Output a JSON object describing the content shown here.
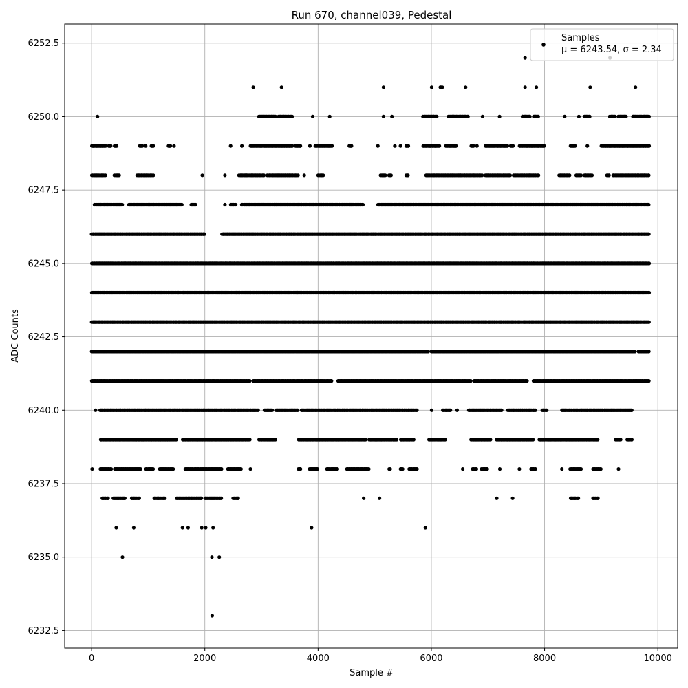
{
  "chart_data": {
    "type": "scatter",
    "title": "Run 670, channel039, Pedestal",
    "xlabel": "Sample #",
    "ylabel": "ADC Counts",
    "xlim": [
      -475,
      10350
    ],
    "ylim": [
      6231.9,
      6253.15
    ],
    "xticks": [
      0,
      2000,
      4000,
      6000,
      8000,
      10000
    ],
    "xtick_labels": [
      "0",
      "2000",
      "4000",
      "6000",
      "8000",
      "10000"
    ],
    "yticks": [
      6232.5,
      6235.0,
      6237.5,
      6240.0,
      6242.5,
      6245.0,
      6247.5,
      6250.0,
      6252.5
    ],
    "ytick_labels": [
      "6232.5",
      "6235.0",
      "6237.5",
      "6240.0",
      "6242.5",
      "6245.0",
      "6247.5",
      "6250.0",
      "6252.5"
    ],
    "grid": true,
    "legend": {
      "placement": "top-right",
      "series_name": "Samples",
      "stats_text": "μ = 6243.54, σ = 2.34"
    },
    "marker_color": "#000000",
    "n_samples": 9850,
    "level_ranges": [
      {
        "y": 6233,
        "ranges": [
          [
            2125,
            2135
          ]
        ]
      },
      {
        "y": 6235,
        "ranges": [
          [
            540,
            550
          ],
          [
            2120,
            2130
          ],
          [
            2250,
            2260
          ]
        ]
      },
      {
        "y": 6236,
        "ranges": [
          [
            430,
            440
          ],
          [
            740,
            750
          ],
          [
            1600,
            1610
          ],
          [
            1700,
            1710
          ],
          [
            1940,
            1950
          ],
          [
            2010,
            2020
          ],
          [
            2140,
            2150
          ],
          [
            3880,
            3890
          ],
          [
            5890,
            5900
          ]
        ]
      },
      {
        "y": 6237,
        "ranges": [
          [
            180,
            300
          ],
          [
            380,
            600
          ],
          [
            700,
            850
          ],
          [
            1100,
            1300
          ],
          [
            1500,
            1650
          ],
          [
            1650,
            1950
          ],
          [
            2000,
            2300
          ],
          [
            2500,
            2600
          ],
          [
            4800,
            4810
          ],
          [
            5080,
            5090
          ],
          [
            7150,
            7160
          ],
          [
            7430,
            7440
          ],
          [
            8450,
            8600
          ],
          [
            8850,
            8950
          ]
        ]
      },
      {
        "y": 6238,
        "ranges": [
          [
            0,
            20
          ],
          [
            150,
            350
          ],
          [
            400,
            700
          ],
          [
            700,
            870
          ],
          [
            950,
            1100
          ],
          [
            1200,
            1450
          ],
          [
            1650,
            2300
          ],
          [
            2400,
            2650
          ],
          [
            2800,
            2810
          ],
          [
            3650,
            3700
          ],
          [
            3850,
            4000
          ],
          [
            4150,
            4350
          ],
          [
            4500,
            4900
          ],
          [
            5250,
            5280
          ],
          [
            5450,
            5500
          ],
          [
            5600,
            5750
          ],
          [
            6550,
            6560
          ],
          [
            6720,
            6800
          ],
          [
            6880,
            7000
          ],
          [
            7200,
            7220
          ],
          [
            7550,
            7560
          ],
          [
            7750,
            7850
          ],
          [
            8300,
            8310
          ],
          [
            8450,
            8650
          ],
          [
            8850,
            9000
          ],
          [
            9300,
            9310
          ]
        ]
      },
      {
        "y": 6239,
        "ranges": [
          [
            150,
            1500
          ],
          [
            1600,
            2800
          ],
          [
            2950,
            3250
          ],
          [
            3650,
            4850
          ],
          [
            4900,
            5400
          ],
          [
            5450,
            5700
          ],
          [
            5950,
            6250
          ],
          [
            6700,
            7050
          ],
          [
            7150,
            7800
          ],
          [
            7900,
            8950
          ],
          [
            9250,
            9350
          ],
          [
            9450,
            9550
          ]
        ]
      },
      {
        "y": 6240,
        "ranges": [
          [
            60,
            80
          ],
          [
            140,
            2950
          ],
          [
            3050,
            3200
          ],
          [
            3250,
            3650
          ],
          [
            3700,
            5750
          ],
          [
            6000,
            6010
          ],
          [
            6200,
            6350
          ],
          [
            6450,
            6460
          ],
          [
            6650,
            7250
          ],
          [
            7350,
            7850
          ],
          [
            7950,
            8050
          ],
          [
            8300,
            9550
          ]
        ]
      },
      {
        "y": 6241,
        "ranges": [
          [
            0,
            2800
          ],
          [
            2850,
            4250
          ],
          [
            4350,
            6700
          ],
          [
            6750,
            7700
          ],
          [
            7800,
            9850
          ]
        ]
      },
      {
        "y": 6242,
        "ranges": [
          [
            0,
            5950
          ],
          [
            6000,
            9600
          ],
          [
            9650,
            9850
          ]
        ]
      },
      {
        "y": 6243,
        "ranges": [
          [
            0,
            9850
          ]
        ]
      },
      {
        "y": 6244,
        "ranges": [
          [
            0,
            9850
          ]
        ]
      },
      {
        "y": 6245,
        "ranges": [
          [
            0,
            9850
          ]
        ]
      },
      {
        "y": 6246,
        "ranges": [
          [
            0,
            1800
          ],
          [
            1800,
            2000
          ],
          [
            2300,
            9850
          ]
        ]
      },
      {
        "y": 6247,
        "ranges": [
          [
            50,
            550
          ],
          [
            650,
            1100
          ],
          [
            1100,
            1600
          ],
          [
            1750,
            1850
          ],
          [
            2350,
            2360
          ],
          [
            2450,
            2550
          ],
          [
            2650,
            4800
          ],
          [
            5050,
            9850
          ]
        ]
      },
      {
        "y": 6248,
        "ranges": [
          [
            0,
            250
          ],
          [
            400,
            500
          ],
          [
            800,
            1100
          ],
          [
            1950,
            1960
          ],
          [
            2350,
            2360
          ],
          [
            2600,
            3050
          ],
          [
            3100,
            3650
          ],
          [
            3750,
            3760
          ],
          [
            4000,
            4100
          ],
          [
            5100,
            5200
          ],
          [
            5250,
            5300
          ],
          [
            5550,
            5600
          ],
          [
            5900,
            6900
          ],
          [
            6950,
            7400
          ],
          [
            7450,
            7900
          ],
          [
            8250,
            8450
          ],
          [
            8550,
            8650
          ],
          [
            8700,
            8850
          ],
          [
            9100,
            9150
          ],
          [
            9200,
            9850
          ]
        ]
      },
      {
        "y": 6249,
        "ranges": [
          [
            0,
            250
          ],
          [
            300,
            350
          ],
          [
            400,
            450
          ],
          [
            850,
            900
          ],
          [
            950,
            960
          ],
          [
            1050,
            1100
          ],
          [
            1350,
            1400
          ],
          [
            1450,
            1460
          ],
          [
            2450,
            2460
          ],
          [
            2650,
            2660
          ],
          [
            2800,
            3550
          ],
          [
            3600,
            3700
          ],
          [
            3850,
            3860
          ],
          [
            3950,
            4250
          ],
          [
            4550,
            4600
          ],
          [
            5050,
            5060
          ],
          [
            5350,
            5360
          ],
          [
            5450,
            5460
          ],
          [
            5550,
            5600
          ],
          [
            5850,
            6150
          ],
          [
            6250,
            6450
          ],
          [
            6700,
            6750
          ],
          [
            6800,
            6810
          ],
          [
            6950,
            7350
          ],
          [
            7400,
            7450
          ],
          [
            7550,
            8000
          ],
          [
            8450,
            8550
          ],
          [
            8750,
            8760
          ],
          [
            9000,
            9850
          ]
        ]
      },
      {
        "y": 6250,
        "ranges": [
          [
            100,
            110
          ],
          [
            2950,
            3250
          ],
          [
            3300,
            3550
          ],
          [
            3900,
            3910
          ],
          [
            4200,
            4210
          ],
          [
            5150,
            5160
          ],
          [
            5300,
            5310
          ],
          [
            5850,
            6100
          ],
          [
            6300,
            6650
          ],
          [
            6900,
            6910
          ],
          [
            7200,
            7210
          ],
          [
            7600,
            7750
          ],
          [
            7800,
            7900
          ],
          [
            8350,
            8360
          ],
          [
            8600,
            8610
          ],
          [
            8700,
            8800
          ],
          [
            9150,
            9250
          ],
          [
            9300,
            9450
          ],
          [
            9550,
            9850
          ]
        ]
      },
      {
        "y": 6251,
        "ranges": [
          [
            2850,
            2860
          ],
          [
            3350,
            3360
          ],
          [
            5150,
            5160
          ],
          [
            6000,
            6010
          ],
          [
            6150,
            6200
          ],
          [
            6600,
            6610
          ],
          [
            7650,
            7660
          ],
          [
            7850,
            7860
          ],
          [
            8800,
            8810
          ],
          [
            9600,
            9610
          ]
        ]
      },
      {
        "y": 6252,
        "ranges": [
          [
            7650,
            7660
          ],
          [
            9150,
            9160
          ]
        ]
      }
    ]
  }
}
